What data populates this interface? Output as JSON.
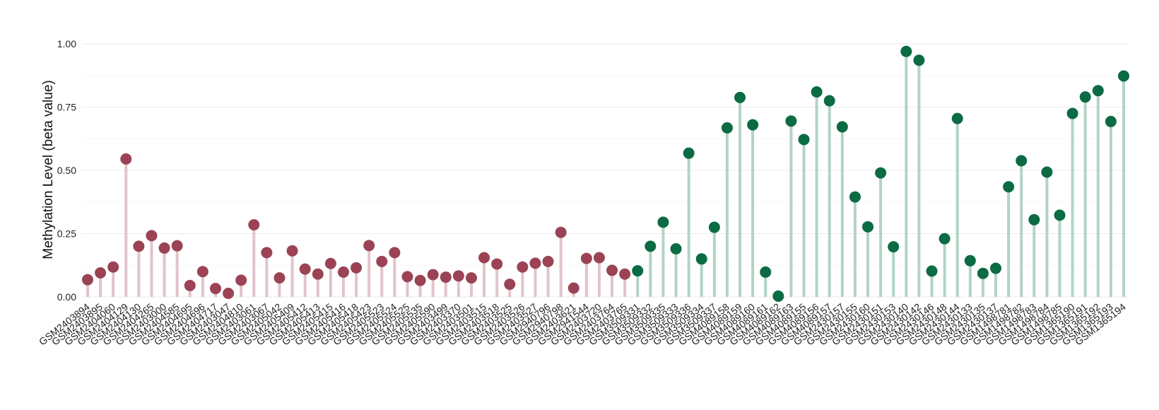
{
  "chart_data": {
    "type": "lollipop",
    "xlabel": "",
    "ylabel": "Methylation Level (beta value)",
    "ylim": [
      0,
      1.0
    ],
    "yticks": [
      "0.00",
      "0.25",
      "0.50",
      "0.75",
      "1.00"
    ],
    "grid": true,
    "legend": "none",
    "colors": {
      "group_a_point": "#9b4355",
      "group_a_stem": "#e2c4cb",
      "group_b_point": "#0b6b43",
      "group_b_stem": "#b3d3c5",
      "grid": "#eeeeee"
    },
    "groups": [
      {
        "color_key": "group_a",
        "categories": [
          "GSM2403894",
          "GSM2403895",
          "GSM2404060",
          "GSM2404129",
          "GSM2404130",
          "GSM2404265",
          "GSM2403000",
          "GSM2404585",
          "GSM2404695",
          "GSM2404696",
          "GSM2404717",
          "GSM2403047",
          "GSM2404810",
          "GSM2403061",
          "GSM2403067",
          "GSM2405042",
          "GSM2405409",
          "GSM2405412",
          "GSM2405413",
          "GSM2405415",
          "GSM2405416",
          "GSM2405418",
          "GSM2405423",
          "GSM2405523",
          "GSM2405524",
          "GSM2405525",
          "GSM2405535",
          "GSM2405590",
          "GSM2403499",
          "GSM2403370",
          "GSM2403501",
          "GSM2403515",
          "GSM2403518",
          "GSM2403525",
          "GSM2403526",
          "GSM2403527",
          "GSM2940796",
          "GSM2940798",
          "GSM2403621",
          "GSM2941544",
          "GSM2403720",
          "GSM2403764",
          "GSM2403765"
        ],
        "values": [
          0.068,
          0.095,
          0.118,
          0.545,
          0.2,
          0.242,
          0.193,
          0.202,
          0.045,
          0.1,
          0.033,
          0.014,
          0.066,
          0.285,
          0.175,
          0.075,
          0.182,
          0.11,
          0.09,
          0.132,
          0.098,
          0.115,
          0.203,
          0.14,
          0.175,
          0.08,
          0.065,
          0.088,
          0.078,
          0.083,
          0.075,
          0.155,
          0.13,
          0.05,
          0.118,
          0.133,
          0.14,
          0.255,
          0.035,
          0.152,
          0.155,
          0.105,
          0.09
        ]
      },
      {
        "color_key": "group_b",
        "categories": [
          "GSM3509331",
          "GSM3509332",
          "GSM3509335",
          "GSM3509333",
          "GSM3509336",
          "GSM3509334",
          "GSM3509337",
          "GSM4089158",
          "GSM4089159",
          "GSM4089160",
          "GSM4089161",
          "GSM4089162",
          "GSM4089163",
          "GSM4089155",
          "GSM4089156",
          "GSM4089157",
          "GSM2430157",
          "GSM2430155",
          "GSM2430160",
          "GSM2430151",
          "GSM2430153",
          "GSM2430140",
          "GSM2430142",
          "GSM2430146",
          "GSM2430148",
          "GSM2430144",
          "GSM2430133",
          "GSM2430135",
          "GSM2430137",
          "GSM1498781",
          "GSM1498782",
          "GSM1498783",
          "GSM1498784",
          "GSM1498785",
          "GSM1365190",
          "GSM1365191",
          "GSM1365192",
          "GSM1365193",
          "GSM1365194"
        ],
        "values": [
          0.103,
          0.2,
          0.295,
          0.19,
          0.568,
          0.15,
          0.275,
          0.668,
          0.788,
          0.68,
          0.098,
          0.003,
          0.695,
          0.622,
          0.81,
          0.775,
          0.672,
          0.395,
          0.277,
          0.49,
          0.198,
          0.97,
          0.935,
          0.102,
          0.23,
          0.705,
          0.143,
          0.093,
          0.113,
          0.435,
          0.538,
          0.305,
          0.493,
          0.323,
          0.725,
          0.79,
          0.815,
          0.693,
          0.873
        ]
      }
    ]
  }
}
